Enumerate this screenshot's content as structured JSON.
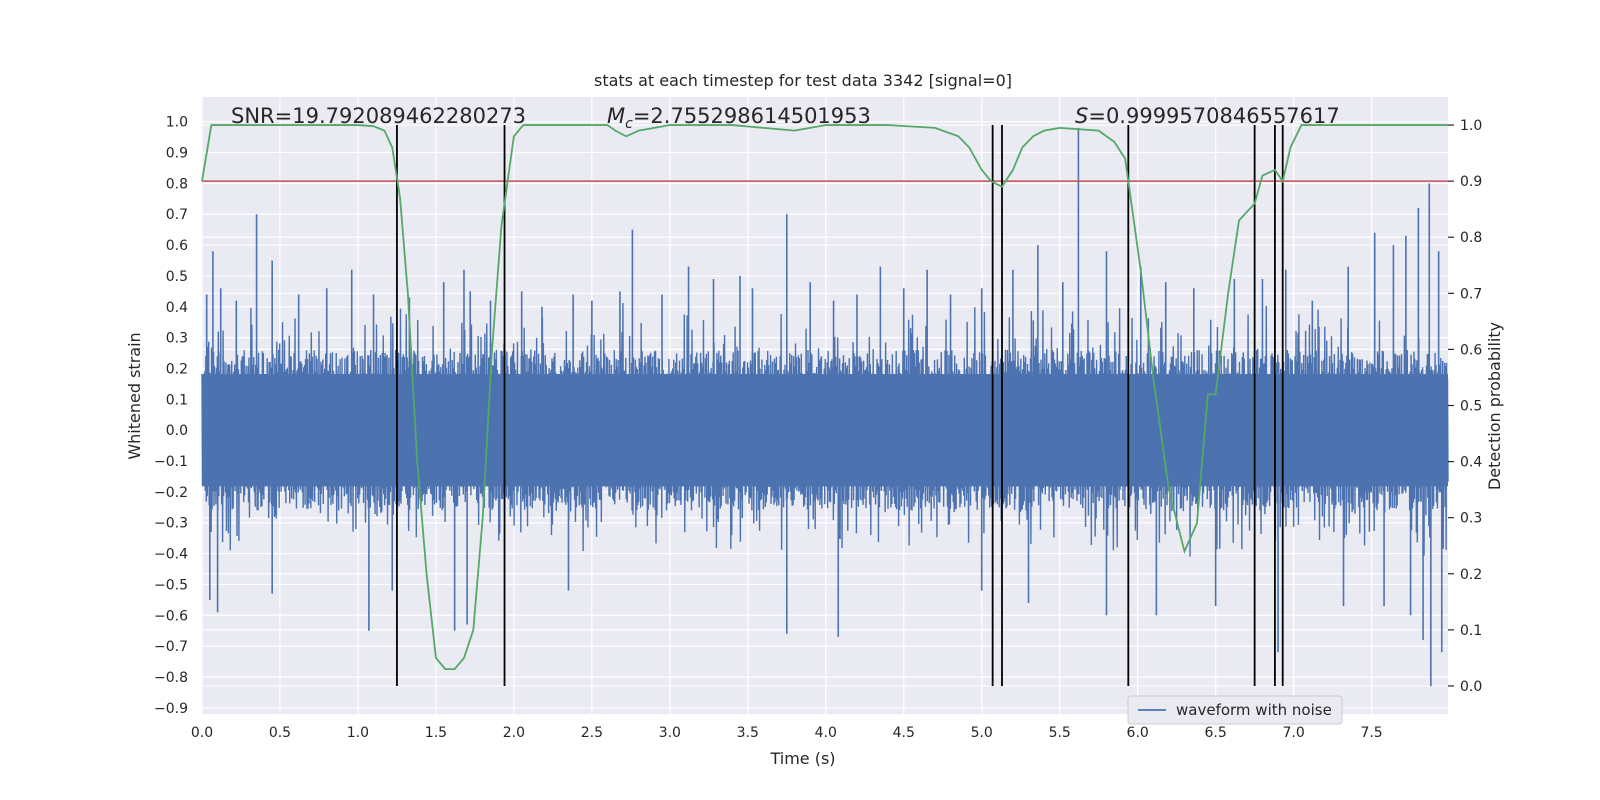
{
  "chart_data": {
    "type": "line",
    "title": "stats at each timestep for test data 3342 [signal=0]",
    "xlabel": "Time (s)",
    "ylabel_left": "Whitened strain",
    "ylabel_right": "Detection probability",
    "xlim": [
      0.0,
      7.99
    ],
    "ylim_left": [
      -0.92,
      1.08
    ],
    "ylim_right": [
      -0.05,
      1.05
    ],
    "x_ticks": [
      0.0,
      0.5,
      1.0,
      1.5,
      2.0,
      2.5,
      3.0,
      3.5,
      4.0,
      4.5,
      5.0,
      5.5,
      6.0,
      6.5,
      7.0,
      7.5
    ],
    "x_tick_labels": [
      "0.0",
      "0.5",
      "1.0",
      "1.5",
      "2.0",
      "2.5",
      "3.0",
      "3.5",
      "4.0",
      "4.5",
      "5.0",
      "5.5",
      "6.0",
      "6.5",
      "7.0",
      "7.5"
    ],
    "y_left_ticks": [
      1.0,
      0.9,
      0.8,
      0.7,
      0.6,
      0.5,
      0.4,
      0.3,
      0.2,
      0.1,
      0.0,
      -0.1,
      -0.2,
      -0.3,
      -0.4,
      -0.5,
      -0.6,
      -0.7,
      -0.8,
      -0.9
    ],
    "y_left_tick_labels": [
      "1.0",
      "0.9",
      "0.8",
      "0.7",
      "0.6",
      "0.5",
      "0.4",
      "0.3",
      "0.2",
      "0.1",
      "0.0",
      "−0.1",
      "−0.2",
      "−0.3",
      "−0.4",
      "−0.5",
      "−0.6",
      "−0.7",
      "−0.8",
      "−0.9"
    ],
    "y_right_ticks": [
      1.0,
      0.9,
      0.8,
      0.7,
      0.6,
      0.5,
      0.4,
      0.3,
      0.2,
      0.1,
      0.0
    ],
    "y_right_tick_labels": [
      "1.0",
      "0.9",
      "0.8",
      "0.7",
      "0.6",
      "0.5",
      "0.4",
      "0.3",
      "0.2",
      "0.1",
      "0.0"
    ],
    "annotations": {
      "snr": "SNR=19.792089462280273",
      "mc_symbol": "M",
      "mc_sub": "c",
      "mc_value": "=2.755298614501953",
      "s_symbol": "S",
      "s_value": "=0.9999570846557617"
    },
    "threshold": {
      "y_right": 0.9,
      "color": "#c44e52"
    },
    "event_markers": {
      "x": [
        1.25,
        1.94,
        5.07,
        5.13,
        5.94,
        6.75,
        6.88,
        6.93
      ],
      "y_right_range": [
        0.0,
        1.0
      ],
      "color": "#000000"
    },
    "series": [
      {
        "name": "waveform with noise",
        "axis": "left",
        "color": "#4c72b0",
        "core_amplitude": 0.26,
        "spikes": [
          [
            0.03,
            0.44
          ],
          [
            0.07,
            0.58
          ],
          [
            0.12,
            0.46
          ],
          [
            0.22,
            0.42
          ],
          [
            0.35,
            0.7
          ],
          [
            0.45,
            0.55
          ],
          [
            0.62,
            0.44
          ],
          [
            0.8,
            0.46
          ],
          [
            0.96,
            0.52
          ],
          [
            1.1,
            0.44
          ],
          [
            1.33,
            0.43
          ],
          [
            1.55,
            0.48
          ],
          [
            1.68,
            0.52
          ],
          [
            1.72,
            0.45
          ],
          [
            1.85,
            0.42
          ],
          [
            2.05,
            0.45
          ],
          [
            2.18,
            0.4
          ],
          [
            2.38,
            0.44
          ],
          [
            2.5,
            0.42
          ],
          [
            2.68,
            0.45
          ],
          [
            2.76,
            0.65
          ],
          [
            2.95,
            0.44
          ],
          [
            3.12,
            0.53
          ],
          [
            3.28,
            0.49
          ],
          [
            3.45,
            0.5
          ],
          [
            3.53,
            0.46
          ],
          [
            3.75,
            0.7
          ],
          [
            3.9,
            0.48
          ],
          [
            4.05,
            0.42
          ],
          [
            4.2,
            0.44
          ],
          [
            4.35,
            0.53
          ],
          [
            4.5,
            0.46
          ],
          [
            4.65,
            0.52
          ],
          [
            4.8,
            0.44
          ],
          [
            5.0,
            0.46
          ],
          [
            5.2,
            0.52
          ],
          [
            5.36,
            0.6
          ],
          [
            5.52,
            0.48
          ],
          [
            5.62,
            0.98
          ],
          [
            5.8,
            0.58
          ],
          [
            6.02,
            0.53
          ],
          [
            6.18,
            0.48
          ],
          [
            6.36,
            0.46
          ],
          [
            6.62,
            0.49
          ],
          [
            6.8,
            0.49
          ],
          [
            6.95,
            0.52
          ],
          [
            7.12,
            0.42
          ],
          [
            7.35,
            0.53
          ],
          [
            7.52,
            0.64
          ],
          [
            7.64,
            0.6
          ],
          [
            7.72,
            0.63
          ],
          [
            7.8,
            0.72
          ],
          [
            7.87,
            0.8
          ],
          [
            7.93,
            0.58
          ],
          [
            0.05,
            -0.55
          ],
          [
            0.1,
            -0.59
          ],
          [
            0.45,
            -0.53
          ],
          [
            1.07,
            -0.65
          ],
          [
            1.22,
            -0.52
          ],
          [
            1.62,
            -0.65
          ],
          [
            1.7,
            -0.63
          ],
          [
            2.35,
            -0.52
          ],
          [
            3.75,
            -0.66
          ],
          [
            4.08,
            -0.67
          ],
          [
            5.0,
            -0.52
          ],
          [
            5.3,
            -0.56
          ],
          [
            5.8,
            -0.6
          ],
          [
            6.12,
            -0.6
          ],
          [
            6.5,
            -0.57
          ],
          [
            6.9,
            -0.72
          ],
          [
            7.32,
            -0.57
          ],
          [
            7.58,
            -0.57
          ],
          [
            7.75,
            -0.6
          ],
          [
            7.83,
            -0.68
          ],
          [
            7.88,
            -0.83
          ],
          [
            7.95,
            -0.72
          ]
        ]
      },
      {
        "name": "Detection probability",
        "axis": "right",
        "color": "#55a868",
        "x": [
          0.0,
          0.06,
          0.12,
          1.0,
          1.1,
          1.17,
          1.22,
          1.27,
          1.32,
          1.38,
          1.44,
          1.5,
          1.56,
          1.62,
          1.68,
          1.74,
          1.8,
          1.86,
          1.92,
          2.0,
          2.06,
          2.2,
          2.6,
          2.65,
          2.72,
          2.8,
          3.0,
          3.4,
          3.8,
          4.0,
          4.4,
          4.7,
          4.85,
          4.92,
          5.0,
          5.06,
          5.13,
          5.2,
          5.26,
          5.33,
          5.4,
          5.5,
          5.75,
          5.85,
          5.92,
          5.96,
          6.02,
          6.1,
          6.2,
          6.3,
          6.38,
          6.45,
          6.5,
          6.58,
          6.65,
          6.75,
          6.8,
          6.88,
          6.93,
          6.98,
          7.05,
          7.12,
          7.5,
          7.99
        ],
        "y": [
          0.9,
          1.0,
          1.0,
          1.0,
          0.998,
          0.99,
          0.96,
          0.87,
          0.7,
          0.4,
          0.2,
          0.05,
          0.03,
          0.03,
          0.05,
          0.1,
          0.3,
          0.6,
          0.82,
          0.98,
          1.0,
          1.0,
          1.0,
          0.99,
          0.98,
          0.99,
          1.0,
          1.0,
          0.99,
          1.0,
          1.0,
          0.995,
          0.98,
          0.96,
          0.92,
          0.9,
          0.89,
          0.92,
          0.96,
          0.98,
          0.99,
          0.995,
          0.99,
          0.97,
          0.94,
          0.86,
          0.74,
          0.55,
          0.35,
          0.24,
          0.29,
          0.52,
          0.52,
          0.7,
          0.83,
          0.86,
          0.91,
          0.92,
          0.9,
          0.96,
          1.0,
          1.0,
          1.0,
          1.0
        ]
      }
    ],
    "legend": {
      "label": "waveform with noise",
      "location": "lower-right"
    }
  },
  "colors": {
    "plot_bg": "#eaeaf2",
    "grid": "#ffffff",
    "text": "#262626"
  }
}
